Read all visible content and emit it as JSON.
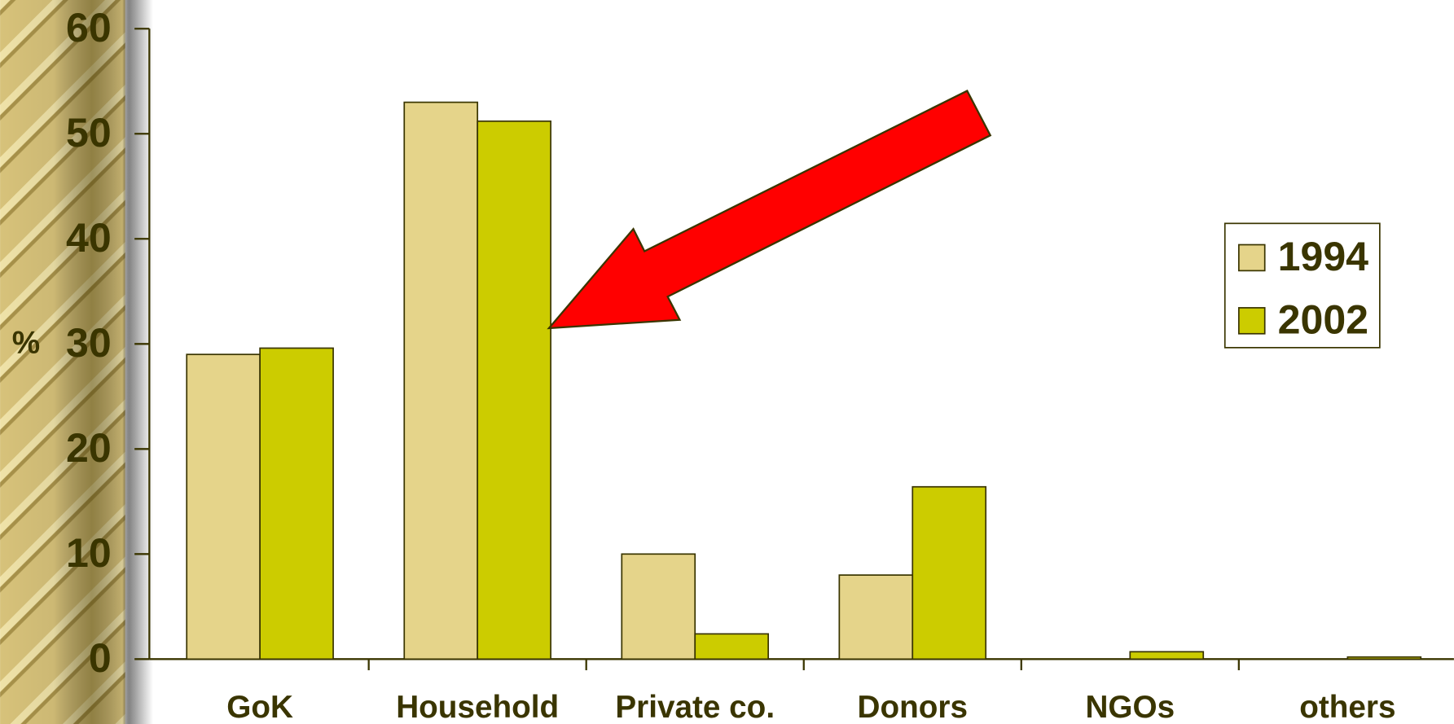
{
  "chart_data": {
    "type": "bar",
    "y_label": "%",
    "categories": [
      "GoK",
      "Household",
      "Private co.",
      "Donors",
      "NGOs",
      "others"
    ],
    "series": [
      {
        "name": "1994",
        "color": "#e5d48a",
        "values": [
          29.0,
          53.0,
          10.0,
          8.0,
          0,
          0
        ]
      },
      {
        "name": "2002",
        "color": "#cccc00",
        "values": [
          29.6,
          51.2,
          2.4,
          16.4,
          0.7,
          0.2
        ]
      }
    ],
    "ylim": [
      0,
      60
    ],
    "yticks": [
      0,
      10,
      20,
      30,
      40,
      50,
      60
    ],
    "legend": "right"
  }
}
